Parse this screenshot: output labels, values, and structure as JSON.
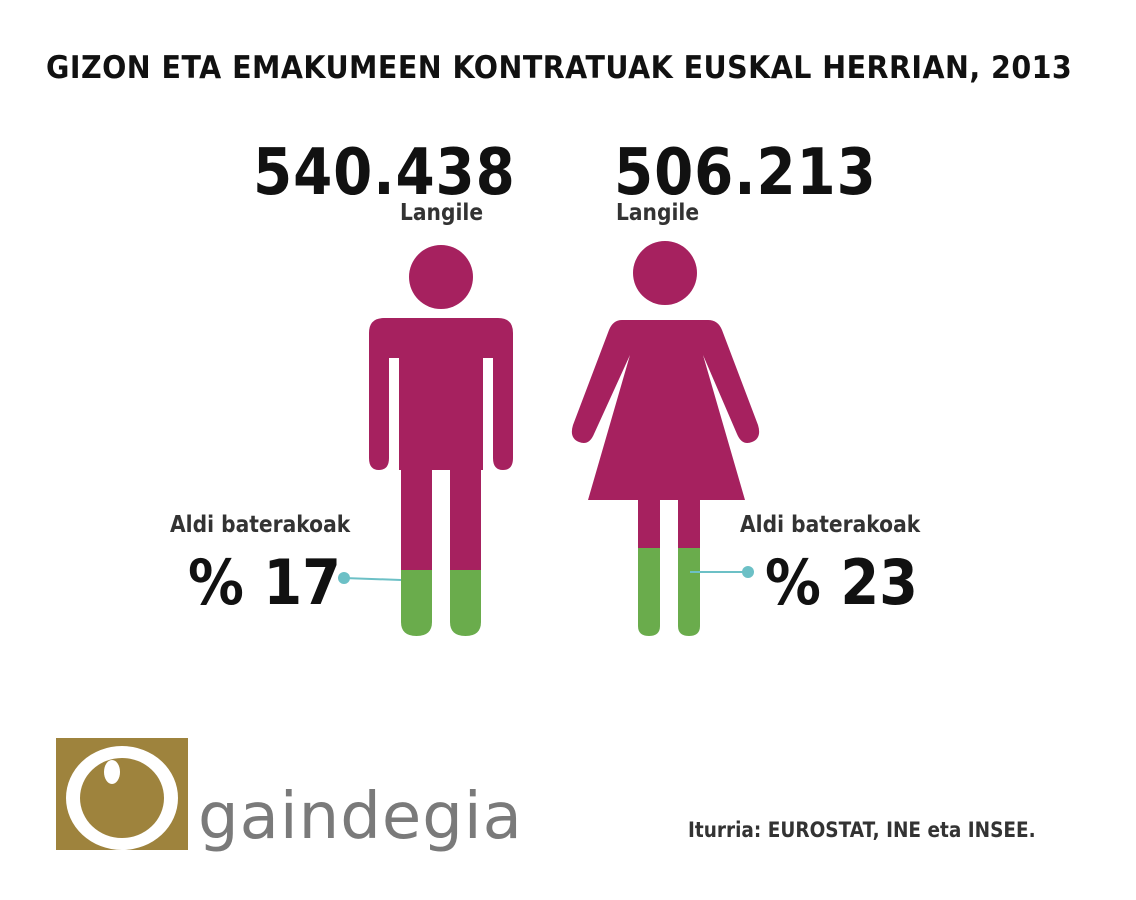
{
  "title": "GIZON ETA EMAKUMEEN KONTRATUAK EUSKAL HERRIAN, 2013",
  "chart_data": {
    "type": "pictogram",
    "title": "GIZON ETA EMAKUMEEN KONTRATUAK EUSKAL HERRIAN, 2013",
    "series": [
      {
        "group": "gizon",
        "workers": "540.438",
        "workers_label": "Langile",
        "temporary_label": "Aldi baterakoak",
        "temporary_pct": 17,
        "temporary_text": "% 17"
      },
      {
        "group": "emakume",
        "workers": "506.213",
        "workers_label": "Langile",
        "temporary_label": "Aldi baterakoak",
        "temporary_pct": 23,
        "temporary_text": "% 23"
      }
    ],
    "colors": {
      "figure": "#a6215f",
      "temporary": "#6aac4c",
      "leader": "#6cc0c6"
    }
  },
  "source": "Iturria: EUROSTAT, INE eta INSEE.",
  "logo": {
    "name": "gaindegia",
    "colors": {
      "gold": "#9e833d",
      "gray": "#7a7a7a"
    }
  }
}
